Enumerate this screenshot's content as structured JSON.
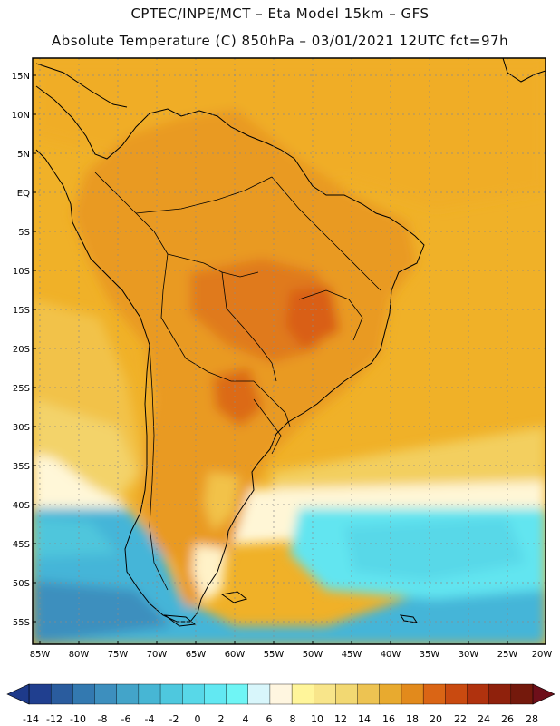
{
  "header": {
    "line1": "CPTEC/INPE/MCT –  Eta Model 15km – GFS",
    "line2": "Absolute Temperature (C) 850hPa – 03/01/2021 12UTC fct=97h"
  },
  "map": {
    "lat_labels": [
      "15N",
      "10N",
      "5N",
      "EQ",
      "5S",
      "10S",
      "15S",
      "20S",
      "25S",
      "30S",
      "35S",
      "40S",
      "45S",
      "50S",
      "55S"
    ],
    "lon_labels": [
      "85W",
      "80W",
      "75W",
      "70W",
      "65W",
      "60W",
      "55W",
      "50W",
      "45W",
      "40W",
      "35W",
      "30W",
      "25W",
      "20W"
    ]
  },
  "colorbar": {
    "labels": [
      "-14",
      "-12",
      "-10",
      "-8",
      "-6",
      "-4",
      "-2",
      "0",
      "2",
      "4",
      "6",
      "8",
      "10",
      "12",
      "14",
      "16",
      "18",
      "20",
      "22",
      "24",
      "26",
      "28"
    ],
    "colors": [
      "#203f8f",
      "#2a5c9e",
      "#3379b0",
      "#3d8fbe",
      "#43a4c9",
      "#47b6d4",
      "#4ec8de",
      "#58d8e8",
      "#62e8f2",
      "#6ff5f5",
      "#d8f6fb",
      "#fff6e0",
      "#fff59a",
      "#f8e58a",
      "#f2d872",
      "#edc352",
      "#e8aa2f",
      "#e28a1c",
      "#da6515",
      "#c94a10",
      "#b0320e",
      "#8f210c",
      "#74190c"
    ],
    "low_color": "#1e3a8a",
    "high_color": "#6e0f1a"
  }
}
